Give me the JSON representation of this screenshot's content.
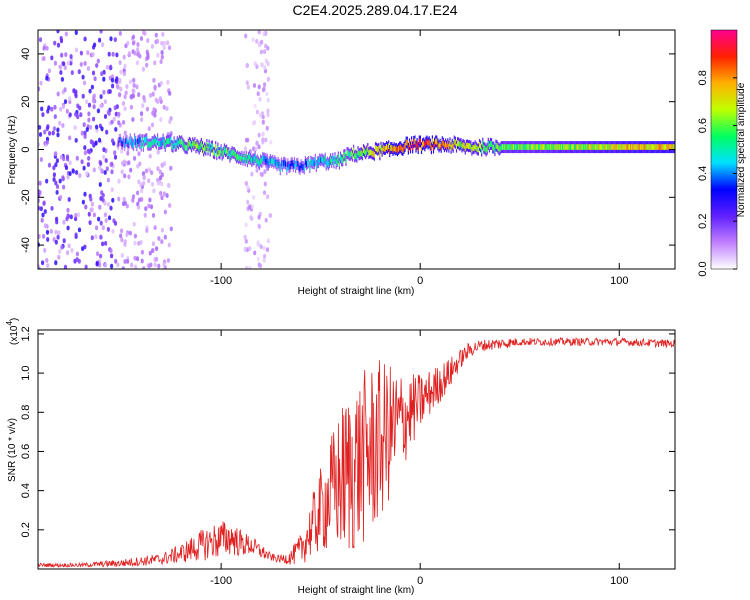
{
  "title": "C2E4.2025.289.04.17.E24",
  "chart_data": [
    {
      "type": "heatmap",
      "xlabel": "Height of straight line (km)",
      "ylabel": "Frequency (Hz)",
      "xlim": [
        -192,
        128
      ],
      "ylim": [
        -50,
        50
      ],
      "xticks": [
        -100,
        0,
        100
      ],
      "yticks": [
        -40,
        -20,
        0,
        20,
        40
      ],
      "colorbar": {
        "label": "Normalized spectral amplitude",
        "range": [
          0,
          1
        ],
        "ticks": [
          "0.0",
          "0.2",
          "0.4",
          "0.6",
          "0.8"
        ],
        "stops": [
          "#ffffff",
          "#c080ff",
          "#6020ff",
          "#0000ff",
          "#00e0ff",
          "#00ff60",
          "#c0ff00",
          "#ffb000",
          "#ff2000",
          "#ff0090"
        ]
      },
      "ridge": {
        "x": [
          -152,
          -140,
          -130,
          -120,
          -110,
          -100,
          -90,
          -80,
          -70,
          -60,
          -50,
          -42,
          -35,
          -25,
          -15,
          -5,
          5,
          15,
          25,
          40,
          60,
          80,
          100,
          128
        ],
        "freq": [
          3,
          3,
          3,
          2,
          1,
          -1,
          -3,
          -5,
          -7,
          -7,
          -5,
          -5,
          -2,
          -1,
          0,
          2,
          2,
          2,
          1,
          1,
          1,
          1,
          1,
          1
        ],
        "amp": [
          0.3,
          0.45,
          0.5,
          0.55,
          0.6,
          0.55,
          0.5,
          0.45,
          0.4,
          0.4,
          0.45,
          0.5,
          0.55,
          0.65,
          0.8,
          0.85,
          0.85,
          0.7,
          0.65,
          0.6,
          0.6,
          0.65,
          0.7,
          0.75
        ]
      },
      "noise_regions": [
        {
          "x_range": [
            -192,
            -152
          ],
          "amp_range": [
            0.05,
            0.3
          ]
        },
        {
          "x_range": [
            -152,
            -125
          ],
          "amp_range": [
            0.05,
            0.15
          ]
        },
        {
          "x_range": [
            -88,
            -75
          ],
          "amp_range": [
            0.03,
            0.12
          ]
        }
      ]
    },
    {
      "type": "line",
      "xlabel": "Height of straight line (km)",
      "ylabel": "SNR (10 * v/v)",
      "yscale_label": "(x10",
      "yscale_exp": "4",
      "yscale_close": ")",
      "xlim": [
        -192,
        128
      ],
      "ylim": [
        0,
        1.22
      ],
      "xticks": [
        -100,
        0,
        100
      ],
      "yticks": [
        0.2,
        0.4,
        0.6,
        0.8,
        1.0,
        1.2
      ],
      "ytick_labels": [
        "0.2",
        "0.4",
        "0.6",
        "0.8",
        "1.0",
        "1.2"
      ],
      "color": "#e02020",
      "x": [
        -192,
        -170,
        -150,
        -130,
        -120,
        -110,
        -105,
        -100,
        -95,
        -90,
        -85,
        -80,
        -75,
        -70,
        -65,
        -60,
        -55,
        -50,
        -45,
        -40,
        -35,
        -30,
        -25,
        -20,
        -15,
        -10,
        -5,
        0,
        5,
        10,
        15,
        20,
        25,
        30,
        40,
        50,
        60,
        80,
        100,
        128
      ],
      "y": [
        0.02,
        0.02,
        0.03,
        0.05,
        0.08,
        0.12,
        0.14,
        0.15,
        0.16,
        0.13,
        0.12,
        0.09,
        0.06,
        0.05,
        0.06,
        0.1,
        0.2,
        0.3,
        0.38,
        0.45,
        0.5,
        0.55,
        0.6,
        0.65,
        0.7,
        0.75,
        0.8,
        0.85,
        0.9,
        0.95,
        1.0,
        1.07,
        1.12,
        1.14,
        1.15,
        1.16,
        1.16,
        1.16,
        1.16,
        1.15
      ],
      "amplitude": [
        0.01,
        0.01,
        0.02,
        0.03,
        0.05,
        0.08,
        0.09,
        0.1,
        0.09,
        0.07,
        0.05,
        0.04,
        0.02,
        0.02,
        0.04,
        0.08,
        0.15,
        0.22,
        0.3,
        0.38,
        0.45,
        0.45,
        0.45,
        0.42,
        0.35,
        0.28,
        0.2,
        0.15,
        0.12,
        0.1,
        0.08,
        0.05,
        0.04,
        0.03,
        0.03,
        0.02,
        0.02,
        0.02,
        0.02,
        0.02
      ]
    }
  ]
}
